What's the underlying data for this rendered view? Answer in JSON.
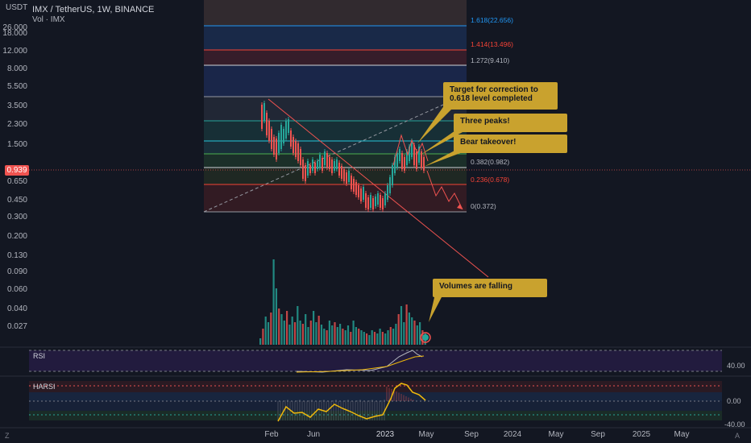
{
  "header": {
    "title": "IMX / TetherUS, 1W, BINANCE",
    "volume_label": "Vol · IMX",
    "price_unit": "USDT"
  },
  "price_axis": [
    "26.000",
    "18.000",
    "12.000",
    "8.000",
    "5.500",
    "3.500",
    "2.300",
    "1.500",
    "0.939",
    "0.650",
    "0.450",
    "0.300",
    "0.200",
    "0.130",
    "0.090",
    "0.060",
    "0.040",
    "0.027"
  ],
  "current_price": "0.939",
  "time_axis": [
    "Feb",
    "Jun",
    "2023",
    "May",
    "Sep",
    "2024",
    "May",
    "Sep",
    "2025",
    "May"
  ],
  "fib_levels": [
    {
      "label": "1.618(22.656)",
      "color": "#2196f3"
    },
    {
      "label": "1.414(13.496)",
      "color": "#f44336"
    },
    {
      "label": "1.272(9.410)",
      "color": "#b2b5be"
    },
    {
      "label": "0.382(0.982)",
      "color": "#b2b5be"
    },
    {
      "label": "0.236(0.678)",
      "color": "#f44336"
    },
    {
      "label": "0(0.372)",
      "color": "#b2b5be"
    }
  ],
  "annotations": {
    "target": "Target for correction to 0.618 level completed",
    "peaks": "Three peaks!",
    "bear": "Bear takeover!",
    "volumes": "Volumes are falling"
  },
  "rsi": {
    "label": "RSI",
    "axis": [
      "40.00"
    ]
  },
  "harsi": {
    "label": "HARSI",
    "axis": [
      "0.00",
      "-40.00"
    ]
  },
  "corner_left": "Z",
  "corner_right": "A",
  "colors": {
    "up": "#26a69a",
    "down": "#ef5350",
    "note": "#c9a22e",
    "background": "#131722"
  }
}
